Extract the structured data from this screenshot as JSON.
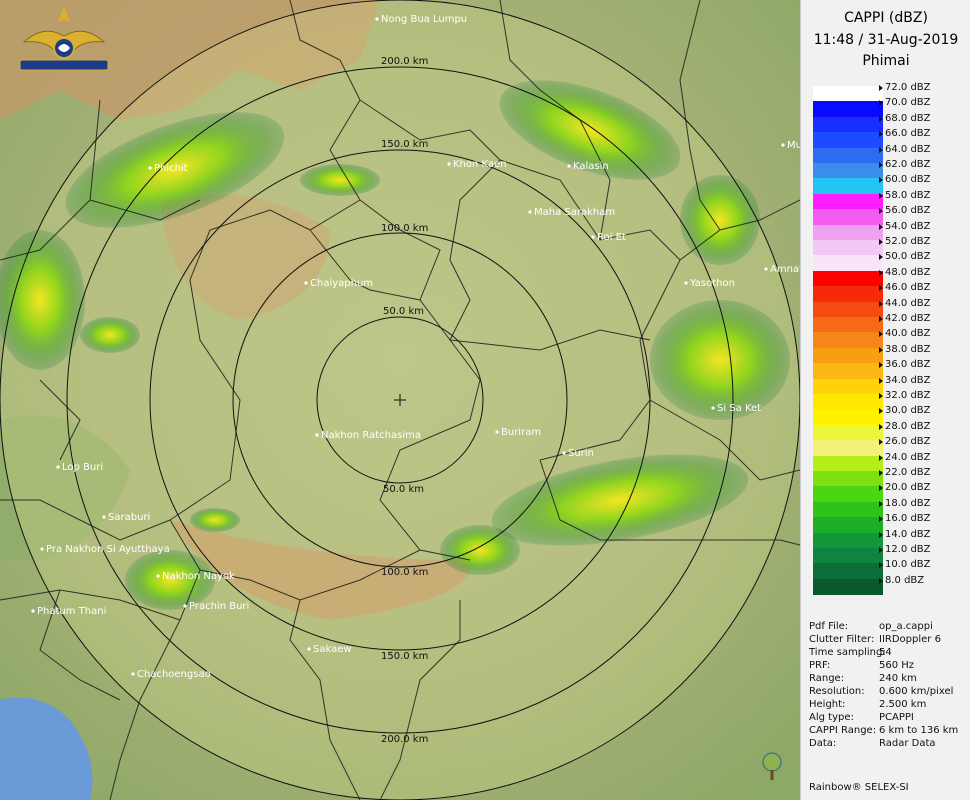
{
  "panel": {
    "title": "CAPPI (dBZ)",
    "datetime": "11:48 / 31-Aug-2019",
    "station": "Phimai"
  },
  "legend": [
    {
      "label": "72.0 dBZ",
      "color": "#ffffff"
    },
    {
      "label": "70.0 dBZ",
      "color": "#0a0aff"
    },
    {
      "label": "68.0 dBZ",
      "color": "#1830ff"
    },
    {
      "label": "66.0 dBZ",
      "color": "#1e4bff"
    },
    {
      "label": "64.0 dBZ",
      "color": "#2b6cf0"
    },
    {
      "label": "62.0 dBZ",
      "color": "#3a8de8"
    },
    {
      "label": "60.0 dBZ",
      "color": "#22c4f4"
    },
    {
      "label": "58.0 dBZ",
      "color": "#ff1cff"
    },
    {
      "label": "56.0 dBZ",
      "color": "#f25cf0"
    },
    {
      "label": "54.0 dBZ",
      "color": "#f0a0f0"
    },
    {
      "label": "52.0 dBZ",
      "color": "#f4c8f4"
    },
    {
      "label": "50.0 dBZ",
      "color": "#f8e6f8"
    },
    {
      "label": "48.0 dBZ",
      "color": "#ff0000"
    },
    {
      "label": "46.0 dBZ",
      "color": "#f52a0a"
    },
    {
      "label": "44.0 dBZ",
      "color": "#f54a10"
    },
    {
      "label": "42.0 dBZ",
      "color": "#f46a16"
    },
    {
      "label": "40.0 dBZ",
      "color": "#f5861c"
    },
    {
      "label": "38.0 dBZ",
      "color": "#f89e12"
    },
    {
      "label": "36.0 dBZ",
      "color": "#fbb812"
    },
    {
      "label": "34.0 dBZ",
      "color": "#ffd20a"
    },
    {
      "label": "32.0 dBZ",
      "color": "#ffe800"
    },
    {
      "label": "30.0 dBZ",
      "color": "#fff200"
    },
    {
      "label": "28.0 dBZ",
      "color": "#ecf53a"
    },
    {
      "label": "26.0 dBZ",
      "color": "#f2f27a"
    },
    {
      "label": "24.0 dBZ",
      "color": "#b4ef18"
    },
    {
      "label": "22.0 dBZ",
      "color": "#7ee010"
    },
    {
      "label": "20.0 dBZ",
      "color": "#4ad612"
    },
    {
      "label": "18.0 dBZ",
      "color": "#2ec21a"
    },
    {
      "label": "16.0 dBZ",
      "color": "#1cae28"
    },
    {
      "label": "14.0 dBZ",
      "color": "#12983a"
    },
    {
      "label": "12.0 dBZ",
      "color": "#0e8440"
    },
    {
      "label": "10.0 dBZ",
      "color": "#0b6e3a"
    },
    {
      "label": "8.0 dBZ",
      "color": "#0a5a30"
    }
  ],
  "info": [
    {
      "key": "Pdf File:",
      "value": "op_a.cappi"
    },
    {
      "key": "Clutter Filter:",
      "value": "IIRDoppler 6"
    },
    {
      "key": "Time sampling:",
      "value": "54"
    },
    {
      "key": "PRF:",
      "value": "560 Hz"
    },
    {
      "key": "Range:",
      "value": "240 km"
    },
    {
      "key": "Resolution:",
      "value": "0.600 km/pixel"
    },
    {
      "key": "Height:",
      "value": "2.500 km"
    },
    {
      "key": "Alg type:",
      "value": "PCAPPI"
    },
    {
      "key": "CAPPI Range:",
      "value": "6 km to 136 km"
    },
    {
      "key": "Data:",
      "value": "Radar Data"
    }
  ],
  "footer": "Rainbow® SELEX-SI",
  "map": {
    "rings_top": [
      "50.0 km",
      "100.0 km",
      "150.0 km",
      "200.0 km"
    ],
    "rings_bottom": [
      "50.0 km",
      "100.0 km",
      "150.0 km",
      "200.0 km"
    ],
    "cities": [
      "Nong Bua Lumpu",
      "Phichit",
      "Khon Kaen",
      "Kalasin",
      "Maha Sarakham",
      "Roi Et",
      "Chaiyaphum",
      "Yasothon",
      "Amnat",
      "Si Sa Ket",
      "Buriram",
      "Surin",
      "Nakhon Ratchasima",
      "Lop Buri",
      "Saraburi",
      "Pra Nakhon Si Ayutthaya",
      "Nakhon Nayok",
      "Prachin Buri",
      "Phatum Thani",
      "Sakaew",
      "Chachoengsao",
      "Mu"
    ]
  }
}
